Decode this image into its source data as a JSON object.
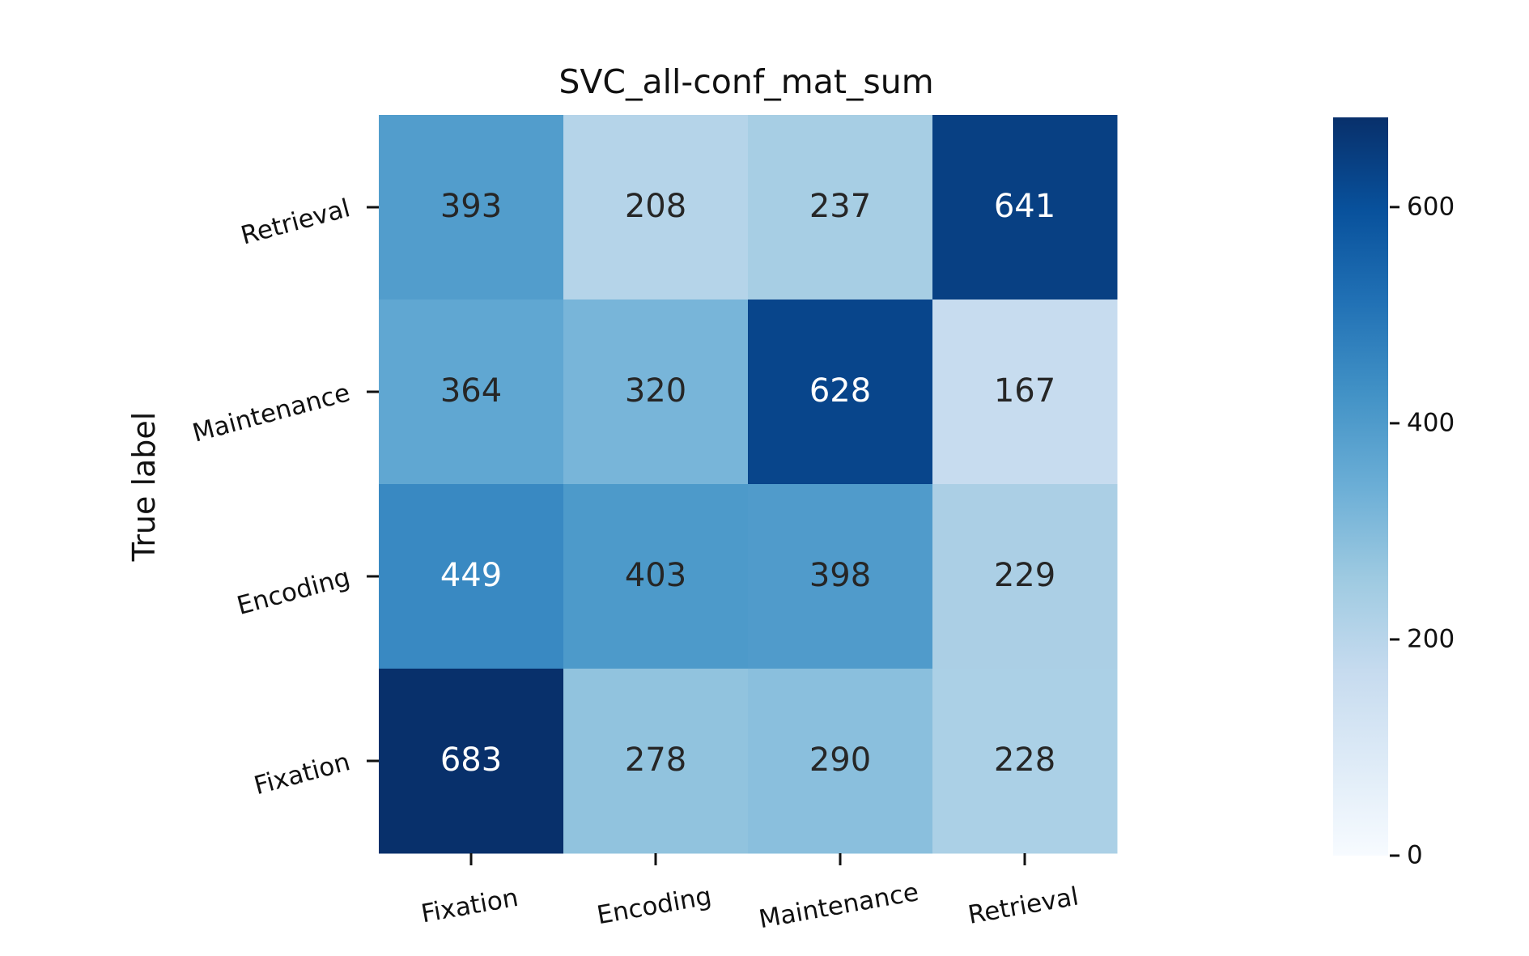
{
  "chart_data": {
    "type": "heatmap",
    "title": "SVC_all-conf_mat_sum",
    "ylabel": "True label",
    "xlabel": "",
    "x_categories": [
      "Fixation",
      "Encoding",
      "Maintenance",
      "Retrieval"
    ],
    "y_categories_top_to_bottom": [
      "Retrieval",
      "Maintenance",
      "Encoding",
      "Fixation"
    ],
    "matrix_top_to_bottom": [
      [
        393,
        208,
        237,
        641
      ],
      [
        364,
        320,
        628,
        167
      ],
      [
        449,
        403,
        398,
        229
      ],
      [
        683,
        278,
        290,
        228
      ]
    ],
    "colormap": "Blues",
    "colorbar": {
      "min": 0,
      "max": 683,
      "ticks": [
        0,
        200,
        400,
        600
      ]
    },
    "text_colors": {
      "dark": "#262626",
      "light": "#ffffff"
    },
    "grid": false
  }
}
